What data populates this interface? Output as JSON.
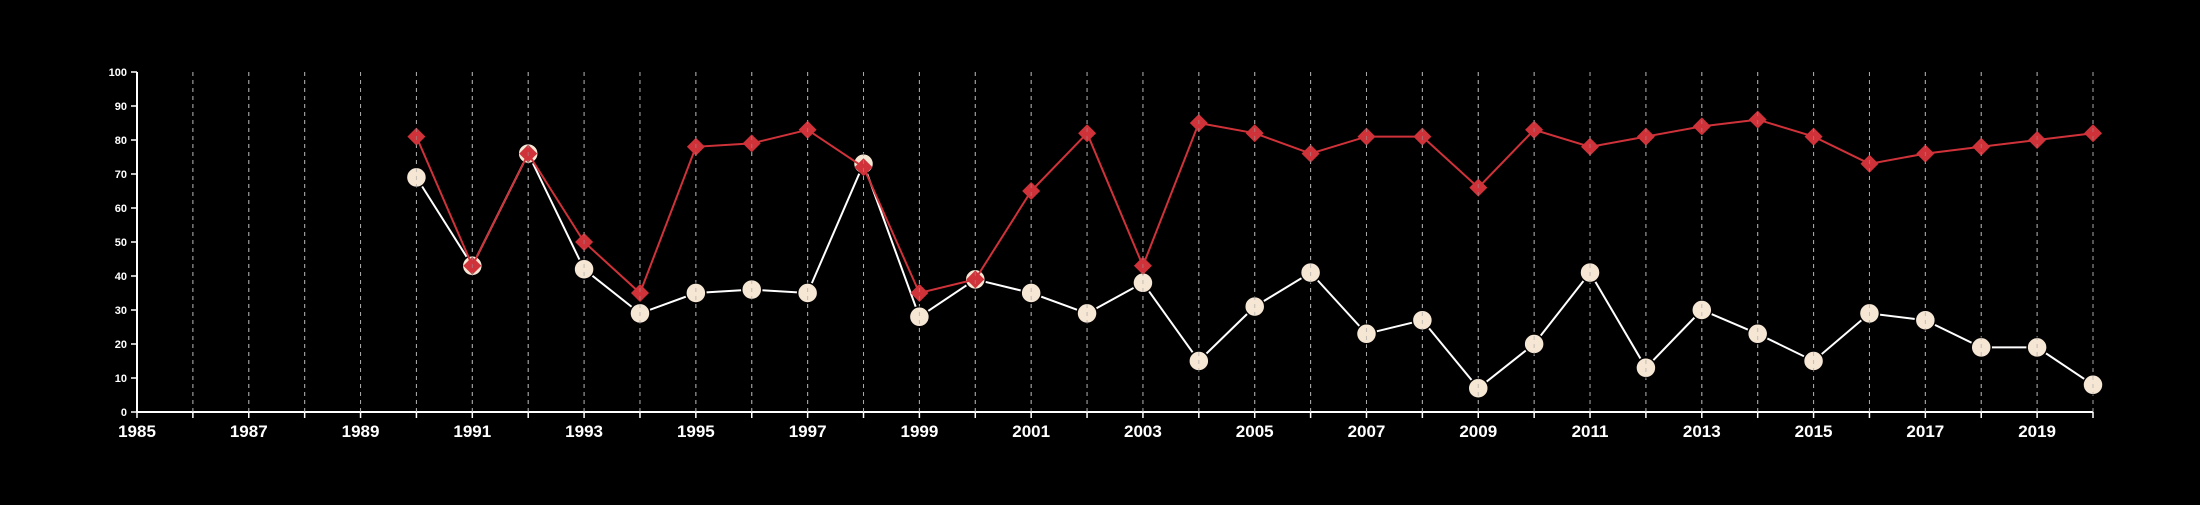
{
  "chart_data": {
    "type": "line",
    "title": "",
    "xlabel": "",
    "ylabel": "",
    "xlim": [
      1985,
      2020
    ],
    "ylim": [
      0,
      100
    ],
    "x_tick_labels": [
      "1985",
      "1987",
      "1989",
      "1991",
      "1993",
      "1995",
      "1997",
      "1999",
      "2001",
      "2003",
      "2005",
      "2007",
      "2009",
      "2011",
      "2013",
      "2015",
      "2017",
      "2019"
    ],
    "y_tick_labels": [
      "0",
      "10",
      "20",
      "30",
      "40",
      "50",
      "60",
      "70",
      "80",
      "90",
      "100"
    ],
    "grid": "vertical dashed lines at each year",
    "legend": "none",
    "x": [
      1990,
      1991,
      1992,
      1993,
      1994,
      1995,
      1996,
      1997,
      1998,
      1999,
      2000,
      2001,
      2002,
      2003,
      2004,
      2005,
      2006,
      2007,
      2008,
      2009,
      2010,
      2011,
      2012,
      2013,
      2014,
      2015,
      2016,
      2017,
      2018,
      2019,
      2020
    ],
    "series": [
      {
        "marker": "diamond",
        "color": "#d0323a",
        "values": [
          81,
          43,
          76,
          50,
          35,
          78,
          79,
          83,
          72,
          35,
          39,
          65,
          82,
          43,
          85,
          82,
          76,
          81,
          81,
          66,
          83,
          78,
          81,
          84,
          86,
          81,
          73,
          76,
          78,
          80,
          82
        ]
      },
      {
        "marker": "circle",
        "color": "#ffffff",
        "marker_fill": "#f6e6d4",
        "values": [
          69,
          43,
          76,
          42,
          29,
          35,
          36,
          35,
          73,
          28,
          39,
          35,
          29,
          38,
          15,
          31,
          41,
          23,
          27,
          7,
          20,
          41,
          13,
          30,
          23,
          15,
          29,
          27,
          19,
          19,
          8
        ]
      }
    ]
  }
}
